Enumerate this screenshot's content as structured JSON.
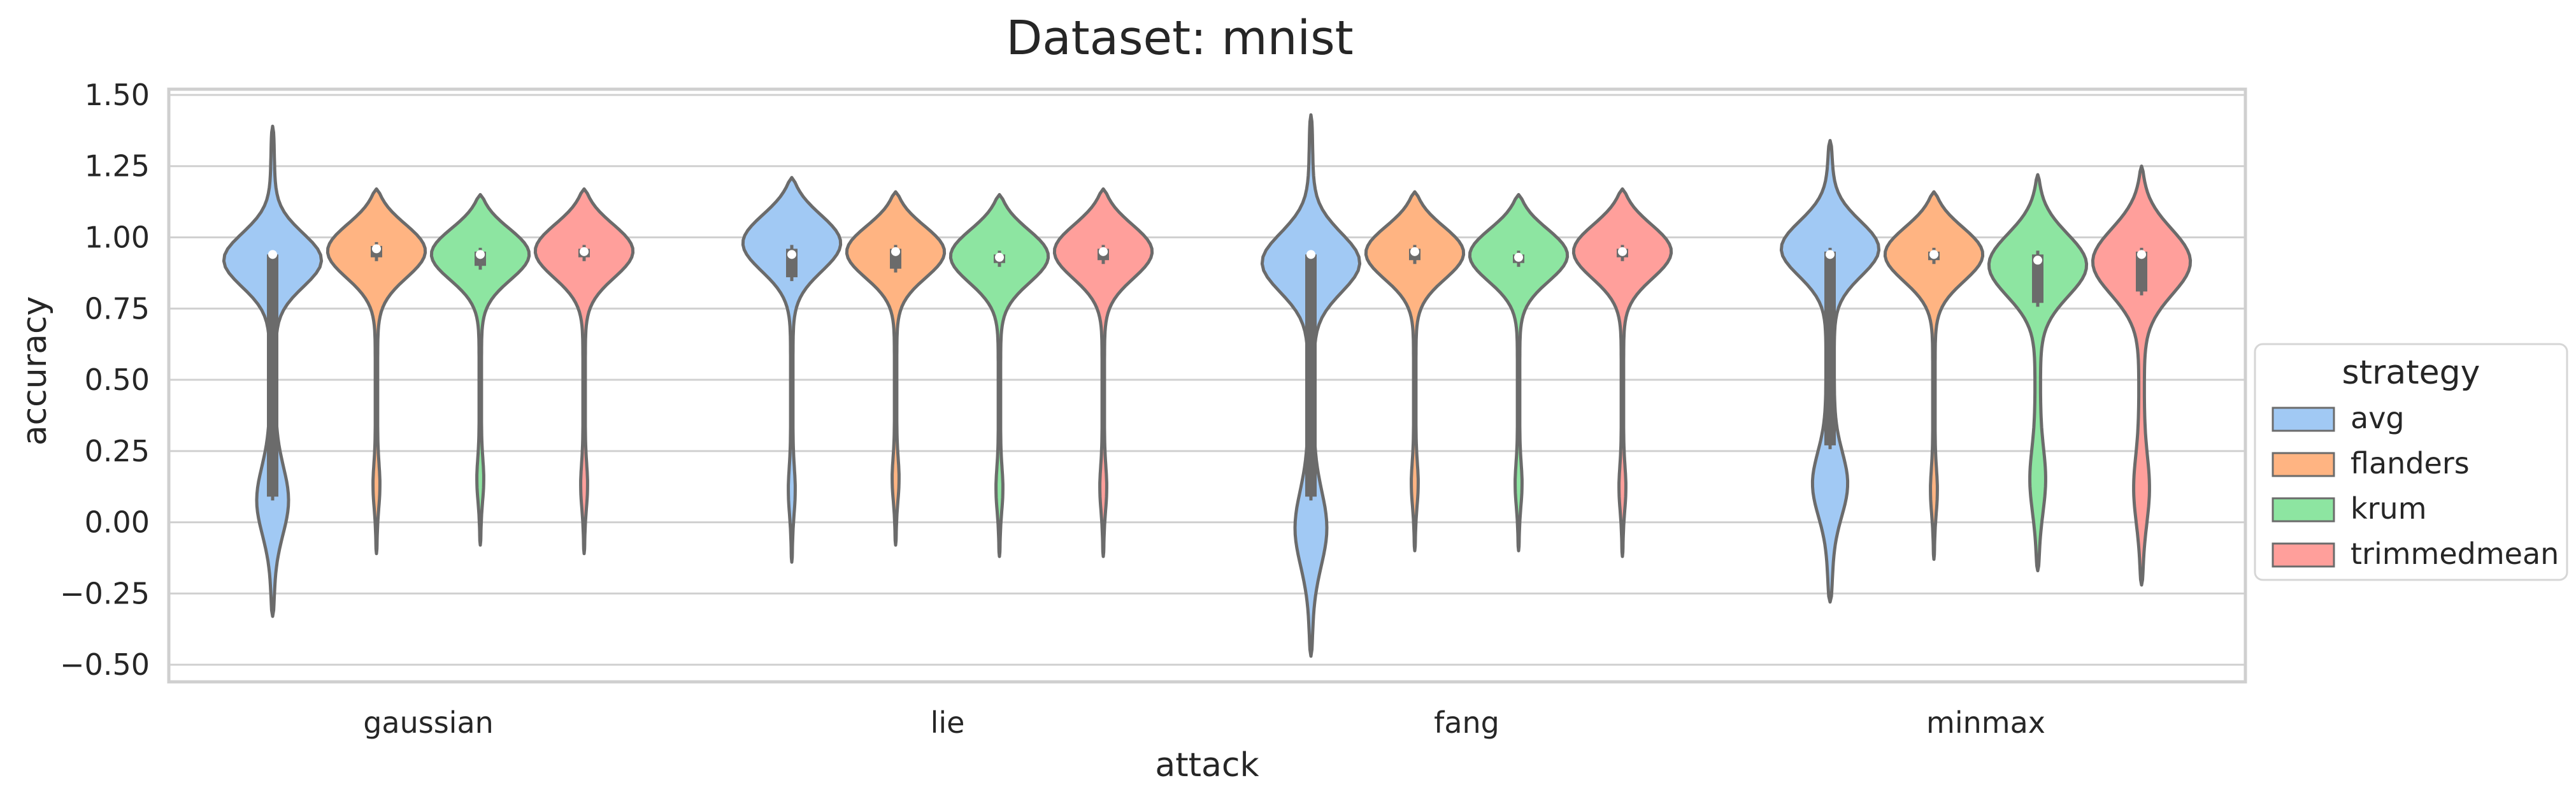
{
  "chart_data": {
    "type": "violin",
    "title": "Dataset: mnist",
    "xlabel": "attack",
    "ylabel": "accuracy",
    "categories": [
      "gaussian",
      "lie",
      "fang",
      "minmax"
    ],
    "ylim": [
      -0.56,
      1.52
    ],
    "yticks": [
      "1.50",
      "1.25",
      "1.00",
      "0.75",
      "0.50",
      "0.25",
      "0.00",
      "−0.25",
      "−0.50"
    ],
    "ytick_values": [
      1.5,
      1.25,
      1.0,
      0.75,
      0.5,
      0.25,
      0.0,
      -0.25,
      -0.5
    ],
    "grid": true,
    "legend": {
      "title": "strategy",
      "placement": "center-right-outside"
    },
    "colors": {
      "avg": "#a1c9f4",
      "flanders": "#ffb482",
      "krum": "#8de5a1",
      "trimmedmean": "#ff9f9b",
      "edge": "#6b6b6b"
    },
    "series": [
      {
        "name": "avg",
        "violins": [
          {
            "min": -0.33,
            "max": 1.39,
            "median": 0.94,
            "q1": 0.09,
            "q3": 0.94,
            "shape": "bimodal-heavy-low"
          },
          {
            "min": -0.14,
            "max": 1.21,
            "median": 0.94,
            "q1": 0.86,
            "q3": 0.96,
            "shape": "single"
          },
          {
            "min": -0.47,
            "max": 1.43,
            "median": 0.94,
            "q1": 0.09,
            "q3": 0.94,
            "shape": "bimodal-heavy-low"
          },
          {
            "min": -0.28,
            "max": 1.34,
            "median": 0.94,
            "q1": 0.27,
            "q3": 0.95,
            "shape": "bimodal"
          }
        ]
      },
      {
        "name": "flanders",
        "violins": [
          {
            "min": -0.11,
            "max": 1.17,
            "median": 0.96,
            "q1": 0.93,
            "q3": 0.97,
            "shape": "single"
          },
          {
            "min": -0.08,
            "max": 1.16,
            "median": 0.95,
            "q1": 0.89,
            "q3": 0.96,
            "shape": "single"
          },
          {
            "min": -0.1,
            "max": 1.16,
            "median": 0.95,
            "q1": 0.92,
            "q3": 0.96,
            "shape": "single"
          },
          {
            "min": -0.13,
            "max": 1.16,
            "median": 0.94,
            "q1": 0.92,
            "q3": 0.95,
            "shape": "single"
          }
        ]
      },
      {
        "name": "krum",
        "violins": [
          {
            "min": -0.08,
            "max": 1.15,
            "median": 0.94,
            "q1": 0.9,
            "q3": 0.95,
            "shape": "single"
          },
          {
            "min": -0.12,
            "max": 1.15,
            "median": 0.93,
            "q1": 0.91,
            "q3": 0.94,
            "shape": "single"
          },
          {
            "min": -0.1,
            "max": 1.15,
            "median": 0.93,
            "q1": 0.91,
            "q3": 0.94,
            "shape": "single"
          },
          {
            "min": -0.17,
            "max": 1.22,
            "median": 0.92,
            "q1": 0.77,
            "q3": 0.94,
            "shape": "single-wide-low"
          }
        ]
      },
      {
        "name": "trimmedmean",
        "violins": [
          {
            "min": -0.11,
            "max": 1.17,
            "median": 0.95,
            "q1": 0.93,
            "q3": 0.96,
            "shape": "single"
          },
          {
            "min": -0.12,
            "max": 1.17,
            "median": 0.95,
            "q1": 0.92,
            "q3": 0.96,
            "shape": "single"
          },
          {
            "min": -0.12,
            "max": 1.17,
            "median": 0.95,
            "q1": 0.93,
            "q3": 0.96,
            "shape": "single"
          },
          {
            "min": -0.22,
            "max": 1.25,
            "median": 0.94,
            "q1": 0.81,
            "q3": 0.95,
            "shape": "single-wide-low"
          }
        ]
      }
    ]
  }
}
